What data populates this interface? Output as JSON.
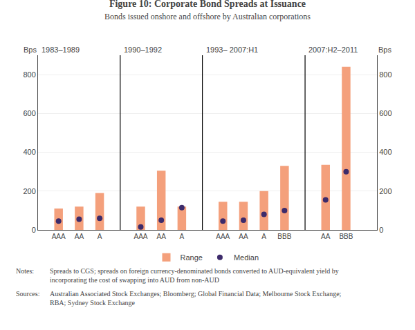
{
  "chart_data": {
    "type": "bar",
    "title": "Figure 10: Corporate Bond Spreads at Issuance",
    "subtitle": "Bonds issued onshore and offshore by Australian corporations",
    "ylabel": "Bps",
    "y2label": "Bps",
    "categories": [
      "AAA",
      "AA",
      "A",
      "AAA",
      "AA",
      "A",
      "AAA",
      "AA",
      "A",
      "BBB",
      "AA",
      "BBB"
    ],
    "category_periods": [
      "1983–1989",
      "1983–1989",
      "1983–1989",
      "1990–1992",
      "1990–1992",
      "1990–1992",
      "1993– 2007:H1",
      "1993– 2007:H1",
      "1993– 2007:H1",
      "1993– 2007:H1",
      "2007:H2–2011",
      "2007:H2–2011"
    ],
    "series": [
      {
        "name": "Range",
        "type": "bar",
        "color": "#F4A07C",
        "values": [
          110,
          120,
          190,
          120,
          305,
          120,
          145,
          145,
          200,
          330,
          335,
          840
        ]
      },
      {
        "name": "Median",
        "type": "scatter",
        "marker": "circle",
        "color": "#3D2B6B",
        "values": [
          45,
          55,
          60,
          15,
          50,
          115,
          45,
          50,
          80,
          100,
          155,
          300
        ]
      }
    ],
    "ylim": [
      0,
      900
    ],
    "yticks": [
      0,
      200,
      400,
      600,
      800
    ],
    "y2lim": [
      0,
      900
    ],
    "y2ticks": [
      0,
      200,
      400,
      600,
      800
    ],
    "grid": true,
    "legend": "bottom",
    "notes_label": "Notes:",
    "notes": "Spreads to CGS; spreads on foreign currency-denominated bonds converted to AUD-equivalent yield by incorporating the cost of swapping into AUD from non-AUD",
    "sources_label": "Sources:",
    "sources": "Australian Associated Stock Exchanges; Bloomberg; Global Financial Data; Melbourne Stock Exchange; RBA; Sydney Stock Exchange"
  }
}
